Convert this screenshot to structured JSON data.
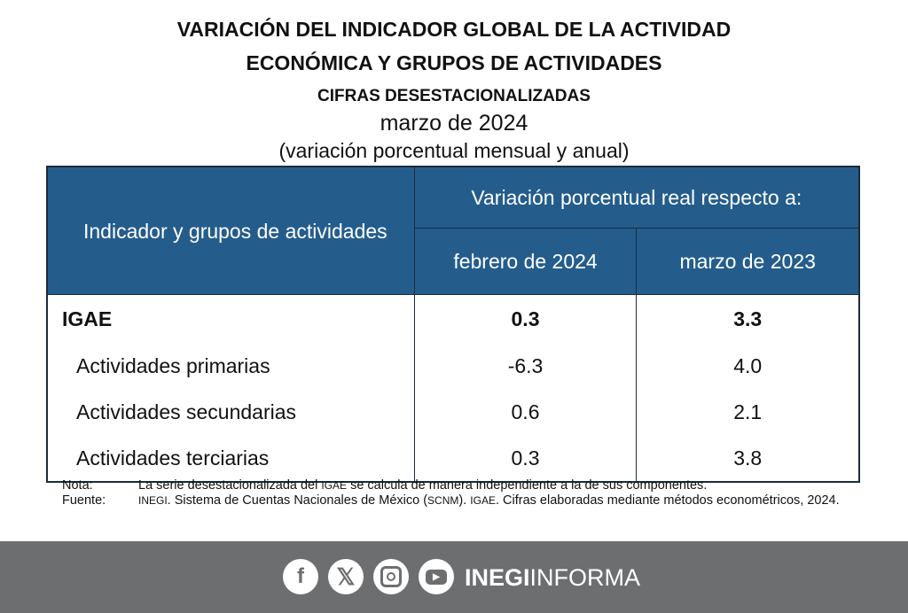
{
  "title": {
    "line1": "VARIACIÓN DEL INDICADOR GLOBAL DE LA ACTIVIDAD",
    "line2": "ECONÓMICA Y GRUPOS DE ACTIVIDADES",
    "line3": "CIFRAS DESESTACIONALIZADAS",
    "period": "marzo de 2024",
    "subtitle": "(variación porcentual mensual y anual)"
  },
  "table": {
    "header_indicator": "Indicador y grupos de actividades",
    "header_group": "Variación porcentual real respecto a:",
    "col1": "febrero de 2024",
    "col2": "marzo de 2023",
    "rows": [
      {
        "label": "IGAE",
        "monthly": "0.3",
        "annual": "3.3"
      },
      {
        "label": "Actividades primarias",
        "monthly": "-6.3",
        "annual": "4.0"
      },
      {
        "label": "Actividades secundarias",
        "monthly": "0.6",
        "annual": "2.1"
      },
      {
        "label": "Actividades terciarias",
        "monthly": "0.3",
        "annual": "3.8"
      }
    ]
  },
  "notes": {
    "nota_label": "Nota:",
    "nota_a": "La serie desestacionalizada del ",
    "nota_igae": "IGAE",
    "nota_b": " se calcula de manera independiente a la de sus componentes.",
    "fuente_label": "Fuente:",
    "fuente_inegi": "INEGI",
    "fuente_a": ". Sistema de Cuentas Nacionales de México (",
    "fuente_scnm": "SCNM",
    "fuente_b": "). ",
    "fuente_igae": "IGAE",
    "fuente_c": ". Cifras elaboradas mediante métodos econométricos, 2024."
  },
  "footer": {
    "icons": [
      "facebook-icon",
      "x-icon",
      "instagram-icon",
      "youtube-icon"
    ],
    "brand_bold": "INEGI",
    "brand_light": "INFORMA",
    "background": "#6d6e70",
    "header_color": "#245d8c"
  }
}
